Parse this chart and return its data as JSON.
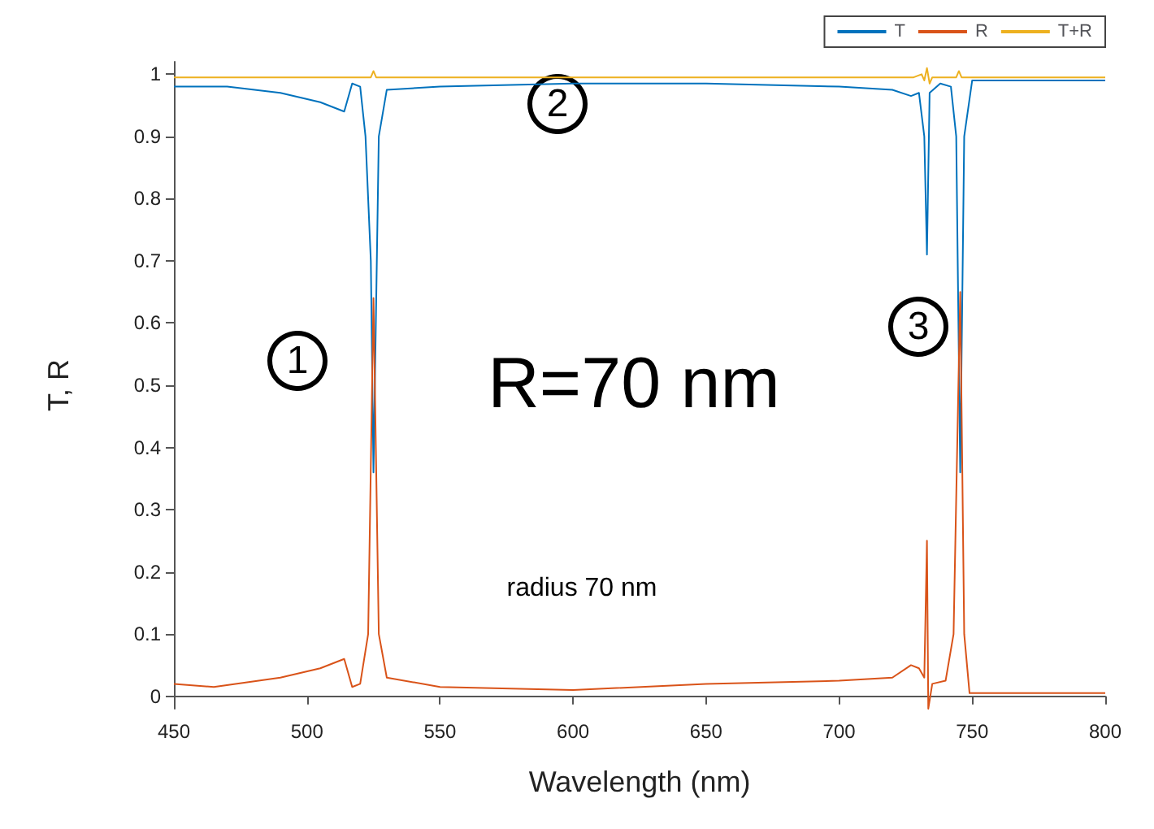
{
  "chart_data": {
    "type": "line",
    "xlabel": "Wavelength (nm)",
    "ylabel": "T, R",
    "xlim": [
      450,
      800
    ],
    "ylim": [
      -0.02,
      1.02
    ],
    "xticks": [
      450,
      500,
      550,
      600,
      650,
      700,
      750,
      800
    ],
    "yticks": [
      0,
      0.1,
      0.2,
      0.3,
      0.4,
      0.5,
      0.6,
      0.7,
      0.8,
      0.9,
      1
    ],
    "grid": false,
    "legend": "top right",
    "marker": "none",
    "line_style": "solid",
    "annotations": [
      "1",
      "2",
      "3",
      "R=70 nm",
      "radius 70 nm"
    ],
    "series": [
      {
        "name": "T",
        "color": "#0072bd",
        "x": [
          450,
          470,
          490,
          505,
          514,
          517,
          520,
          522,
          524,
          525,
          527,
          530,
          550,
          600,
          650,
          700,
          720,
          727,
          730,
          732,
          733,
          734,
          738,
          742,
          744,
          745.5,
          747,
          750,
          800
        ],
        "values": [
          0.98,
          0.98,
          0.97,
          0.955,
          0.94,
          0.985,
          0.98,
          0.9,
          0.7,
          0.36,
          0.9,
          0.975,
          0.98,
          0.985,
          0.985,
          0.98,
          0.975,
          0.965,
          0.97,
          0.9,
          0.71,
          0.97,
          0.985,
          0.98,
          0.9,
          0.36,
          0.9,
          0.99,
          0.99
        ]
      },
      {
        "name": "R",
        "color": "#d95319",
        "x": [
          450,
          465,
          490,
          505,
          514,
          517,
          520,
          523,
          525,
          527,
          530,
          550,
          600,
          650,
          700,
          720,
          727,
          730,
          732,
          733,
          733.5,
          735,
          740,
          743,
          745.5,
          747,
          749,
          800
        ],
        "values": [
          0.02,
          0.015,
          0.03,
          0.045,
          0.06,
          0.015,
          0.02,
          0.1,
          0.64,
          0.1,
          0.03,
          0.015,
          0.01,
          0.02,
          0.025,
          0.03,
          0.05,
          0.045,
          0.03,
          0.25,
          -0.02,
          0.02,
          0.025,
          0.1,
          0.65,
          0.1,
          0.005,
          0.005
        ]
      },
      {
        "name": "T+R",
        "color": "#edb120",
        "x": [
          450,
          520,
          524,
          525,
          526,
          530,
          600,
          700,
          728,
          731,
          732,
          733,
          734,
          735,
          740,
          744,
          745,
          746,
          750,
          800
        ],
        "values": [
          0.995,
          0.995,
          0.995,
          1.005,
          0.995,
          0.995,
          0.995,
          0.995,
          0.995,
          1,
          0.99,
          1.01,
          0.985,
          0.995,
          0.995,
          0.995,
          1.005,
          0.995,
          0.995,
          0.995
        ]
      }
    ]
  }
}
